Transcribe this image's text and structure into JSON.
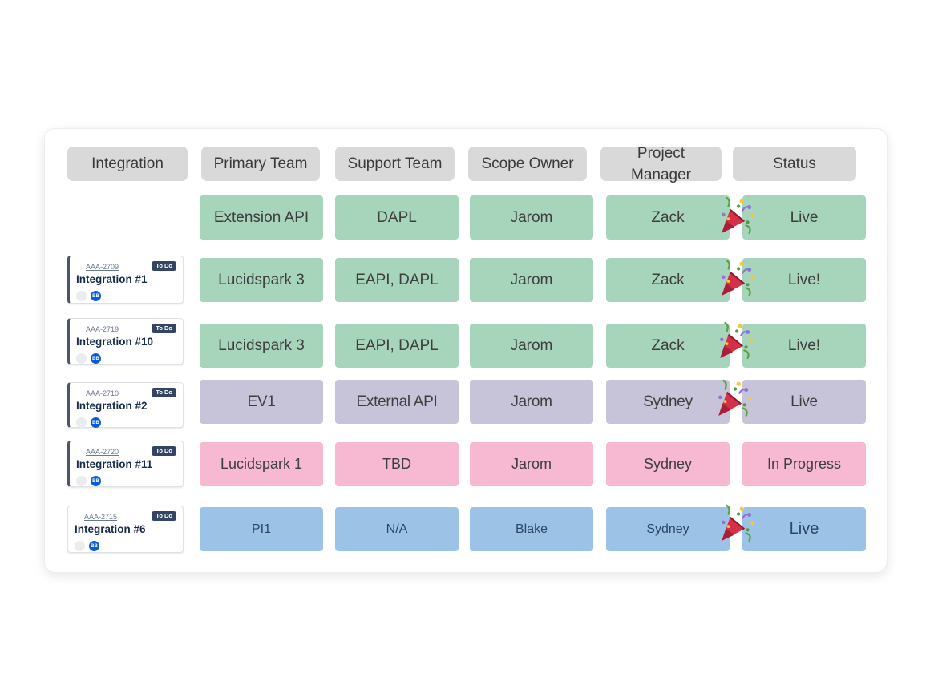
{
  "board": {
    "columns": [
      "Integration",
      "Primary Team",
      "Support Team",
      "Scope Owner",
      "Project Manager",
      "Status"
    ],
    "rows": [
      {
        "theme": "green",
        "celebration": true,
        "card": null,
        "cells": [
          "Extension API",
          "DAPL",
          "Jarom",
          "Zack",
          "Live"
        ]
      },
      {
        "theme": "green",
        "celebration": true,
        "card": {
          "key": "AAA-2709",
          "title": "Integration #1",
          "status": "To Do",
          "avatar": "BB"
        },
        "cells": [
          "Lucidspark 3",
          "EAPI, DAPL",
          "Jarom",
          "Zack",
          "Live!"
        ]
      },
      {
        "theme": "green",
        "celebration": true,
        "card": {
          "key": "AAA-2719",
          "title": "Integration #10",
          "status": "To Do",
          "avatar": "BB"
        },
        "cells": [
          "Lucidspark 3",
          "EAPI, DAPL",
          "Jarom",
          "Zack",
          "Live!"
        ]
      },
      {
        "theme": "lavender",
        "celebration": true,
        "card": {
          "key": "AAA-2710",
          "title": "Integration #2",
          "status": "To Do",
          "avatar": "BB"
        },
        "cells": [
          "EV1",
          "External API",
          "Jarom",
          "Sydney",
          "Live"
        ]
      },
      {
        "theme": "pink",
        "celebration": false,
        "card": {
          "key": "AAA-2720",
          "title": "Integration #11",
          "status": "To Do",
          "avatar": "BB"
        },
        "cells": [
          "Lucidspark 1",
          "TBD",
          "Jarom",
          "Sydney",
          "In Progress"
        ]
      },
      {
        "theme": "blue",
        "celebration": true,
        "card": {
          "key": "AAA-2715",
          "title": "Integration #6",
          "status": "To Do",
          "avatar": "BB"
        },
        "cells": [
          "PI1",
          "N/A",
          "Blake",
          "Sydney",
          "Live"
        ]
      }
    ],
    "colors": {
      "green": "#a7d5bb",
      "lavender": "#c7c4d9",
      "pink": "#f6b9d1",
      "blue": "#9cc3e6",
      "header": "#d9d9d9",
      "badge": "#344563"
    },
    "icons": {
      "celebration": "party-popper-icon"
    }
  }
}
